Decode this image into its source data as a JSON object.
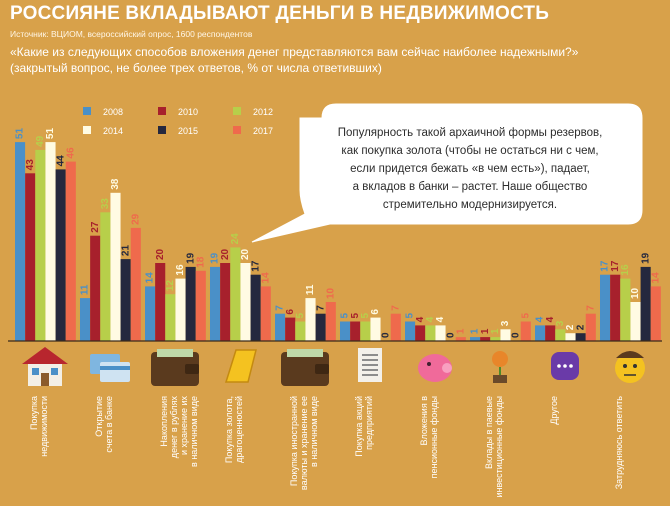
{
  "header": {
    "title": "РОССИЯНЕ ВКЛАДЫВАЮТ ДЕНЬГИ В НЕДВИЖИМОСТЬ",
    "source": "Источник: ВЦИОМ, всероссийский опрос, 1600 респондентов",
    "question": "«Какие из следующих способов вложения денег представляются вам сейчас наиболее надежными?»",
    "question_note": "(закрытый вопрос, не более трех ответов, % от числа ответивших)"
  },
  "callout": {
    "lines": [
      "Популярность такой архаичной формы резервов,",
      "как покупка золота (чтобы не остаться ни с чем,",
      "если придется бежать «в чем есть»), падает,",
      "а вкладов в банки – растет. Наше общество",
      "стремительно модернизируется."
    ]
  },
  "colors": {
    "background": "#d8a14a",
    "2008": "#4a90c8",
    "2010": "#a7202c",
    "2012": "#b7cf4a",
    "2014": "#fffbe3",
    "2015": "#25283e",
    "2017": "#ef6a4c"
  },
  "chart_data": {
    "type": "bar",
    "categories": [
      "Покупка недвижимости",
      "Открытие счета в банке",
      "Накопления денег в рублях и хранение их в наличном виде",
      "Покупка золота, драгоценностей",
      "Покупка иностранной валюты и хранение ее в наличном виде",
      "Покупка акций предприятий",
      "Вложения в пенсионные фонды",
      "Вклады в паевые инвестиционные фонды",
      "Другое",
      "Затрудняюсь ответить"
    ],
    "icons": [
      "house-icon",
      "bank-cards-icon",
      "wallet-icon",
      "gold-bar-icon",
      "wallet-icon",
      "shares-document-icon",
      "piggy-bank-icon",
      "coin-plant-icon",
      "dots-icon",
      "confused-face-icon"
    ],
    "series": [
      {
        "name": "2008",
        "values": [
          51,
          11,
          14,
          19,
          7,
          5,
          5,
          1,
          4,
          17
        ]
      },
      {
        "name": "2010",
        "values": [
          43,
          27,
          20,
          20,
          6,
          5,
          4,
          1,
          4,
          17
        ]
      },
      {
        "name": "2012",
        "values": [
          49,
          33,
          12,
          24,
          5,
          5,
          4,
          1,
          3,
          16
        ]
      },
      {
        "name": "2014",
        "values": [
          51,
          38,
          16,
          20,
          11,
          6,
          4,
          3,
          2,
          10
        ]
      },
      {
        "name": "2015",
        "values": [
          44,
          21,
          19,
          17,
          7,
          0,
          0,
          0,
          2,
          19
        ]
      },
      {
        "name": "2017",
        "values": [
          46,
          29,
          18,
          14,
          10,
          7,
          1,
          5,
          7,
          14
        ]
      }
    ],
    "ylim": [
      0,
      55
    ],
    "grid": false,
    "legend": "top-left"
  }
}
